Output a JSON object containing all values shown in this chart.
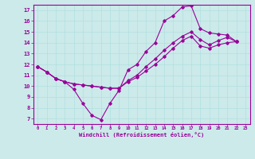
{
  "xlabel": "Windchill (Refroidissement éolien,°C)",
  "xlim": [
    -0.5,
    23.5
  ],
  "ylim": [
    6.5,
    17.5
  ],
  "xticks": [
    0,
    1,
    2,
    3,
    4,
    5,
    6,
    7,
    8,
    9,
    10,
    11,
    12,
    13,
    14,
    15,
    16,
    17,
    18,
    19,
    20,
    21,
    22,
    23
  ],
  "yticks": [
    7,
    8,
    9,
    10,
    11,
    12,
    13,
    14,
    15,
    16,
    17
  ],
  "bg_color": "#cceaea",
  "line_color": "#990099",
  "line1_x": [
    0,
    1,
    2,
    3,
    4,
    5,
    6,
    7,
    8,
    9,
    10,
    11,
    12,
    13,
    14,
    15,
    16,
    17,
    18,
    19,
    20,
    21,
    22
  ],
  "line1_y": [
    11.8,
    11.3,
    10.7,
    10.4,
    9.7,
    8.4,
    7.3,
    6.9,
    8.4,
    9.6,
    11.5,
    12.0,
    13.2,
    14.0,
    16.0,
    16.5,
    17.3,
    17.4,
    15.3,
    14.9,
    14.8,
    14.7,
    14.1
  ],
  "line2_x": [
    0,
    1,
    2,
    3,
    4,
    5,
    6,
    7,
    8,
    9,
    10,
    11,
    12,
    13,
    14,
    15,
    16,
    17,
    18,
    19,
    20,
    21,
    22
  ],
  "line2_y": [
    11.8,
    11.3,
    10.7,
    10.4,
    10.2,
    10.1,
    10.0,
    9.9,
    9.8,
    9.8,
    10.5,
    11.0,
    11.8,
    12.5,
    13.3,
    14.0,
    14.6,
    15.0,
    14.3,
    13.8,
    14.2,
    14.5,
    14.1
  ],
  "line3_x": [
    0,
    1,
    2,
    3,
    4,
    5,
    6,
    7,
    8,
    9,
    10,
    11,
    12,
    13,
    14,
    15,
    16,
    17,
    18,
    19,
    20,
    21,
    22
  ],
  "line3_y": [
    11.8,
    11.3,
    10.7,
    10.4,
    10.2,
    10.1,
    10.0,
    9.9,
    9.8,
    9.8,
    10.4,
    10.8,
    11.4,
    12.0,
    12.7,
    13.5,
    14.2,
    14.6,
    13.7,
    13.5,
    13.8,
    14.0,
    14.1
  ]
}
